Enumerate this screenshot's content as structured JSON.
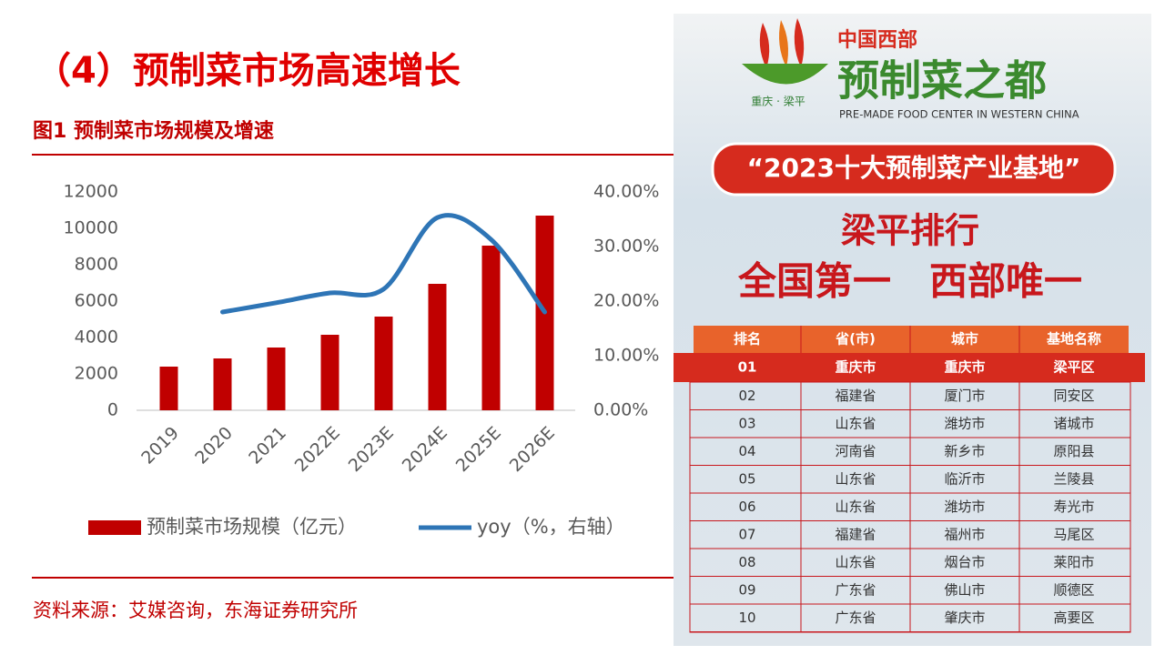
{
  "header": {
    "title": "（4）预制菜市场高速增长",
    "figure_title": "图1  预制菜市场规模及增速"
  },
  "chart_data": {
    "type": "combo",
    "categories": [
      "2019",
      "2020",
      "2021",
      "2022E",
      "2023E",
      "2024E",
      "2025E",
      "2026E"
    ],
    "series": [
      {
        "name": "预制菜市场规模（亿元）",
        "type": "bar",
        "color": "#c00000",
        "values": [
          2400,
          2850,
          3450,
          4150,
          5150,
          6950,
          9050,
          10700
        ]
      },
      {
        "name": "yoy（%，右轴）",
        "type": "line",
        "color": "#2e75b6",
        "axis": "y2",
        "values": [
          null,
          18,
          19.7,
          21.5,
          22.2,
          35.3,
          31.3,
          18
        ]
      }
    ],
    "ylim": [
      0,
      12000
    ],
    "yticks": [
      0,
      2000,
      4000,
      6000,
      8000,
      10000,
      12000
    ],
    "y2lim": [
      0,
      40
    ],
    "y2ticks": [
      {
        "value": 0,
        "label": "0.00%"
      },
      {
        "value": 10,
        "label": "10.00%"
      },
      {
        "value": 20,
        "label": "20.00%"
      },
      {
        "value": 30,
        "label": "30.00%"
      },
      {
        "value": 40,
        "label": "40.00%"
      }
    ],
    "grid": false,
    "legend": "bottom"
  },
  "source": "资料来源：艾媒咨询，东海证券研究所",
  "photo": {
    "logo_top": "中国西部",
    "logo_main": "预制菜之都",
    "logo_place": "重庆 · 梁平",
    "logo_english": "PRE-MADE FOOD CENTER IN WESTERN CHINA",
    "banner": "“2023十大预制菜产业基地”",
    "headline1": "梁平排行",
    "headline2": "全国第一　西部唯一",
    "table": {
      "columns": [
        "排名",
        "省(市)",
        "城市",
        "基地名称"
      ],
      "rows": [
        [
          "01",
          "重庆市",
          "重庆市",
          "梁平区"
        ],
        [
          "02",
          "福建省",
          "厦门市",
          "同安区"
        ],
        [
          "03",
          "山东省",
          "潍坊市",
          "诸城市"
        ],
        [
          "04",
          "河南省",
          "新乡市",
          "原阳县"
        ],
        [
          "05",
          "山东省",
          "临沂市",
          "兰陵县"
        ],
        [
          "06",
          "山东省",
          "潍坊市",
          "寿光市"
        ],
        [
          "07",
          "福建省",
          "福州市",
          "马尾区"
        ],
        [
          "08",
          "山东省",
          "烟台市",
          "莱阳市"
        ],
        [
          "09",
          "广东省",
          "佛山市",
          "顺德区"
        ],
        [
          "10",
          "广东省",
          "肇庆市",
          "高要区"
        ]
      ]
    }
  }
}
